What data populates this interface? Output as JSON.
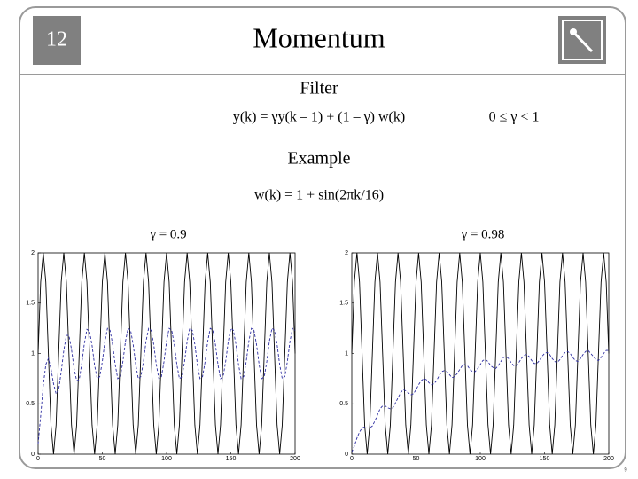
{
  "slide": {
    "number": "12",
    "title": "Momentum",
    "page_number": "9"
  },
  "filter": {
    "label": "Filter",
    "equation": "y(k) = γy(k – 1) + (1 – γ) w(k)",
    "condition": "0 ≤ γ < 1"
  },
  "example": {
    "label": "Example",
    "equation": "w(k) = 1 + sin(2πk/16)"
  },
  "chart_data": [
    {
      "type": "line",
      "title": "γ = 0.9",
      "x": [
        0,
        2,
        4,
        6,
        8,
        10,
        12,
        14,
        16,
        18,
        20,
        22,
        24,
        26,
        28,
        30,
        32,
        34,
        36,
        38,
        40,
        42,
        44,
        46,
        48,
        50,
        52,
        54,
        56,
        58,
        60,
        62,
        64,
        66,
        68,
        70,
        72,
        74,
        76,
        78,
        80,
        82,
        84,
        86,
        88,
        90,
        92,
        94,
        96,
        98,
        100,
        102,
        104,
        106,
        108,
        110,
        112,
        114,
        116,
        118,
        120,
        122,
        124,
        126,
        128,
        130,
        132,
        134,
        136,
        138,
        140,
        142,
        144,
        146,
        148,
        150,
        152,
        154,
        156,
        158,
        160,
        162,
        164,
        166,
        168,
        170,
        172,
        174,
        176,
        178,
        180,
        182,
        184,
        186,
        188,
        190,
        192,
        194,
        196,
        198,
        200
      ],
      "series": [
        {
          "color": "#000000",
          "values": [
            1,
            1.71,
            2,
            1.71,
            1,
            0.29,
            0,
            0.29,
            1,
            1.71,
            2,
            1.71,
            1,
            0.29,
            0,
            0.29,
            1,
            1.71,
            2,
            1.71,
            1,
            0.29,
            0,
            0.29,
            1,
            1.71,
            2,
            1.71,
            1,
            0.29,
            0,
            0.29,
            1,
            1.71,
            2,
            1.71,
            1,
            0.29,
            0,
            0.29,
            1,
            1.71,
            2,
            1.71,
            1,
            0.29,
            0,
            0.29,
            1,
            1.71,
            2,
            1.71,
            1,
            0.29,
            0,
            0.29,
            1,
            1.71,
            2,
            1.71,
            1,
            0.29,
            0,
            0.29,
            1,
            1.71,
            2,
            1.71,
            1,
            0.29,
            0,
            0.29,
            1,
            1.71,
            2,
            1.71,
            1,
            0.29,
            0,
            0.29,
            1,
            1.71,
            2,
            1.71,
            1,
            0.29,
            0,
            0.29,
            1,
            1.71,
            2,
            1.71,
            1,
            0.29,
            0,
            0.29,
            1,
            1.71,
            2,
            1.71,
            1
          ]
        },
        {
          "color": "#2b2ba0",
          "dashed": true,
          "values": [
            0.1,
            0.38,
            0.68,
            0.89,
            0.95,
            0.85,
            0.7,
            0.6,
            0.64,
            0.82,
            1.03,
            1.18,
            1.18,
            1.04,
            0.85,
            0.73,
            0.74,
            0.9,
            1.1,
            1.24,
            1.22,
            1.08,
            0.88,
            0.75,
            0.77,
            0.92,
            1.12,
            1.25,
            1.23,
            1.09,
            0.89,
            0.75,
            0.77,
            0.92,
            1.12,
            1.25,
            1.23,
            1.09,
            0.89,
            0.75,
            0.77,
            0.92,
            1.12,
            1.25,
            1.23,
            1.09,
            0.89,
            0.75,
            0.77,
            0.92,
            1.12,
            1.25,
            1.23,
            1.09,
            0.89,
            0.75,
            0.77,
            0.92,
            1.12,
            1.25,
            1.23,
            1.09,
            0.89,
            0.75,
            0.77,
            0.92,
            1.12,
            1.25,
            1.23,
            1.09,
            0.89,
            0.75,
            0.77,
            0.92,
            1.12,
            1.25,
            1.23,
            1.09,
            0.89,
            0.75,
            0.77,
            0.92,
            1.12,
            1.25,
            1.23,
            1.09,
            0.89,
            0.75,
            0.77,
            0.92,
            1.12,
            1.25,
            1.23,
            1.09,
            0.89,
            0.75,
            0.77,
            0.92,
            1.12,
            1.25,
            1.23
          ]
        }
      ],
      "xlim": [
        0,
        200
      ],
      "xticks": [
        0,
        50,
        100,
        150,
        200
      ],
      "ylim": [
        0,
        2
      ],
      "yticks": [
        0,
        0.5,
        1,
        1.5,
        2
      ],
      "grid": false
    },
    {
      "type": "line",
      "title": "γ = 0.98",
      "x": [
        0,
        2,
        4,
        6,
        8,
        10,
        12,
        14,
        16,
        18,
        20,
        22,
        24,
        26,
        28,
        30,
        32,
        34,
        36,
        38,
        40,
        42,
        44,
        46,
        48,
        50,
        52,
        54,
        56,
        58,
        60,
        62,
        64,
        66,
        68,
        70,
        72,
        74,
        76,
        78,
        80,
        82,
        84,
        86,
        88,
        90,
        92,
        94,
        96,
        98,
        100,
        102,
        104,
        106,
        108,
        110,
        112,
        114,
        116,
        118,
        120,
        122,
        124,
        126,
        128,
        130,
        132,
        134,
        136,
        138,
        140,
        142,
        144,
        146,
        148,
        150,
        152,
        154,
        156,
        158,
        160,
        162,
        164,
        166,
        168,
        170,
        172,
        174,
        176,
        178,
        180,
        182,
        184,
        186,
        188,
        190,
        192,
        194,
        196,
        198,
        200
      ],
      "series": [
        {
          "color": "#000000",
          "values": [
            1,
            1.71,
            2,
            1.71,
            1,
            0.29,
            0,
            0.29,
            1,
            1.71,
            2,
            1.71,
            1,
            0.29,
            0,
            0.29,
            1,
            1.71,
            2,
            1.71,
            1,
            0.29,
            0,
            0.29,
            1,
            1.71,
            2,
            1.71,
            1,
            0.29,
            0,
            0.29,
            1,
            1.71,
            2,
            1.71,
            1,
            0.29,
            0,
            0.29,
            1,
            1.71,
            2,
            1.71,
            1,
            0.29,
            0,
            0.29,
            1,
            1.71,
            2,
            1.71,
            1,
            0.29,
            0,
            0.29,
            1,
            1.71,
            2,
            1.71,
            1,
            0.29,
            0,
            0.29,
            1,
            1.71,
            2,
            1.71,
            1,
            0.29,
            0,
            0.29,
            1,
            1.71,
            2,
            1.71,
            1,
            0.29,
            0,
            0.29,
            1,
            1.71,
            2,
            1.71,
            1,
            0.29,
            0,
            0.29,
            1,
            1.71,
            2,
            1.71,
            1,
            0.29,
            0,
            0.29,
            1,
            1.71,
            2,
            1.71,
            1
          ]
        },
        {
          "color": "#2b2ba0",
          "dashed": true,
          "values": [
            0.02,
            0.08,
            0.16,
            0.22,
            0.26,
            0.27,
            0.26,
            0.26,
            0.28,
            0.33,
            0.39,
            0.45,
            0.48,
            0.48,
            0.46,
            0.45,
            0.46,
            0.51,
            0.56,
            0.61,
            0.64,
            0.63,
            0.61,
            0.59,
            0.6,
            0.64,
            0.69,
            0.73,
            0.75,
            0.74,
            0.71,
            0.69,
            0.7,
            0.73,
            0.78,
            0.82,
            0.83,
            0.82,
            0.79,
            0.76,
            0.77,
            0.8,
            0.84,
            0.88,
            0.89,
            0.88,
            0.84,
            0.82,
            0.82,
            0.85,
            0.89,
            0.93,
            0.94,
            0.92,
            0.88,
            0.86,
            0.85,
            0.88,
            0.92,
            0.96,
            0.97,
            0.95,
            0.91,
            0.88,
            0.88,
            0.91,
            0.95,
            0.98,
            0.99,
            0.97,
            0.93,
            0.9,
            0.9,
            0.93,
            0.97,
            1.0,
            1.01,
            0.99,
            0.95,
            0.92,
            0.91,
            0.94,
            0.98,
            1.01,
            1.02,
            1.0,
            0.96,
            0.93,
            0.92,
            0.95,
            0.99,
            1.02,
            1.03,
            1.0,
            0.97,
            0.94,
            0.93,
            0.96,
            1.0,
            1.03,
            1.03
          ]
        }
      ],
      "xlim": [
        0,
        200
      ],
      "xticks": [
        0,
        50,
        100,
        150,
        200
      ],
      "ylim": [
        0,
        2
      ],
      "yticks": [
        0,
        0.5,
        1,
        1.5,
        2
      ],
      "grid": false
    }
  ]
}
